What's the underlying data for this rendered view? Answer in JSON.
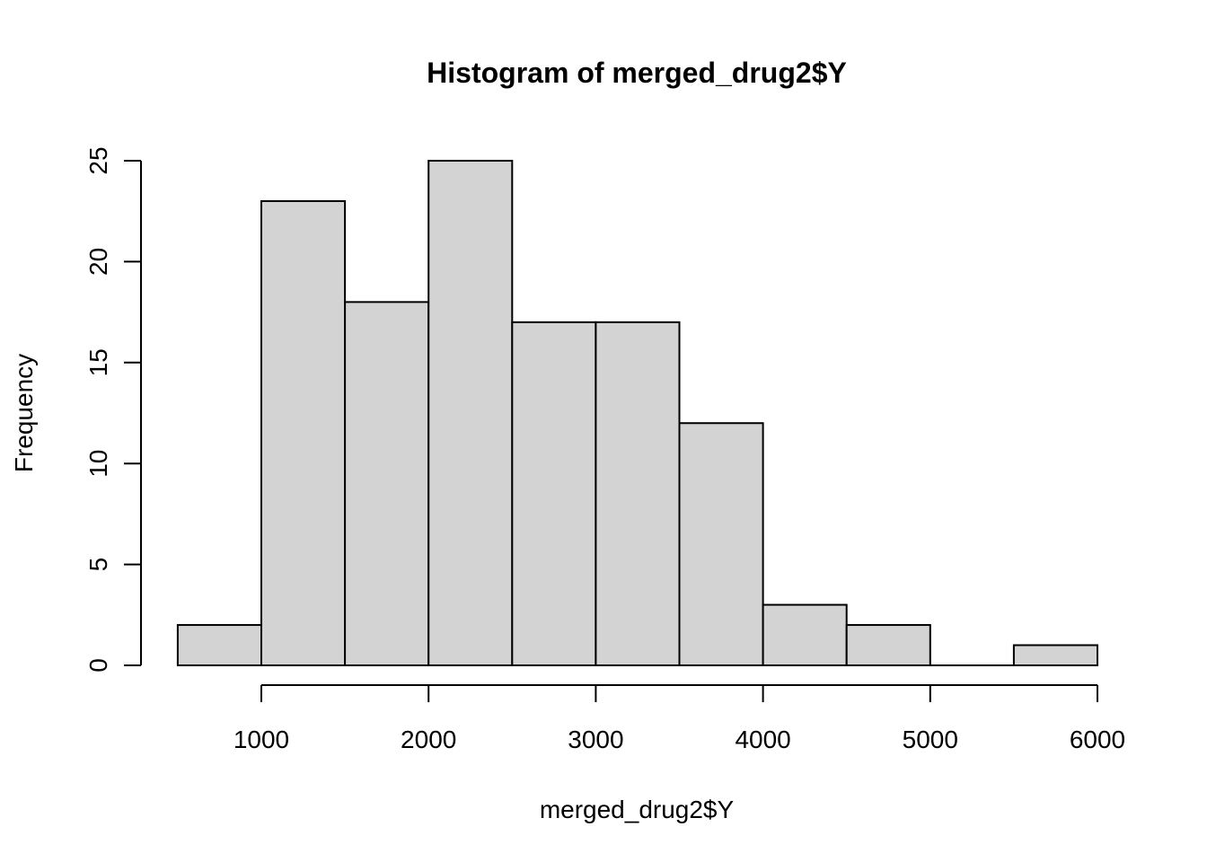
{
  "chart_data": {
    "type": "bar",
    "title": "Histogram of merged_drug2$Y",
    "xlabel": "merged_drug2$Y",
    "ylabel": "Frequency",
    "bins": [
      {
        "from": 500,
        "to": 1000,
        "count": 2
      },
      {
        "from": 1000,
        "to": 1500,
        "count": 23
      },
      {
        "from": 1500,
        "to": 2000,
        "count": 18
      },
      {
        "from": 2000,
        "to": 2500,
        "count": 25
      },
      {
        "from": 2500,
        "to": 3000,
        "count": 17
      },
      {
        "from": 3000,
        "to": 3500,
        "count": 17
      },
      {
        "from": 3500,
        "to": 4000,
        "count": 12
      },
      {
        "from": 4000,
        "to": 4500,
        "count": 3
      },
      {
        "from": 4500,
        "to": 5000,
        "count": 2
      },
      {
        "from": 5000,
        "to": 5500,
        "count": 0
      },
      {
        "from": 5500,
        "to": 6000,
        "count": 1
      }
    ],
    "x_ticks": [
      1000,
      2000,
      3000,
      4000,
      5000,
      6000
    ],
    "y_ticks": [
      0,
      5,
      10,
      15,
      20,
      25
    ],
    "xlim": [
      500,
      6000
    ],
    "ylim": [
      0,
      25
    ],
    "colors": {
      "bar_fill": "#d3d3d3",
      "bar_stroke": "#000000"
    }
  }
}
